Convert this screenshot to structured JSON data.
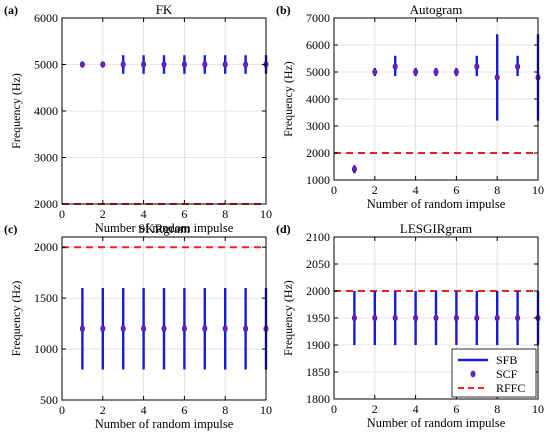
{
  "figure": {
    "colors": {
      "sfb": "#1a1adb",
      "scf": "#7a1fa2",
      "rffc": "#e8231f",
      "grid": "#dcdcdc",
      "axis": "#000000"
    }
  },
  "chart_data": [
    {
      "panel_label": "(a)",
      "type": "errorbar",
      "title": "FK",
      "xlabel": "Number of random impulse",
      "ylabel": "Frequency (Hz)",
      "xlim": [
        0,
        10
      ],
      "ylim": [
        2000,
        6000
      ],
      "xticks": [
        0,
        2,
        4,
        6,
        8,
        10
      ],
      "yticks": [
        2000,
        3000,
        4000,
        5000,
        6000
      ],
      "grid": true,
      "x": [
        1,
        2,
        3,
        4,
        5,
        6,
        7,
        8,
        9,
        10
      ],
      "scf": [
        5000,
        5000,
        5000,
        5000,
        5000,
        5000,
        5000,
        5000,
        5000,
        5000
      ],
      "sfb_low": [
        4950,
        4960,
        4800,
        4800,
        4800,
        4800,
        4800,
        4800,
        4800,
        4800
      ],
      "sfb_high": [
        5050,
        5040,
        5200,
        5200,
        5200,
        5200,
        5200,
        5200,
        5200,
        5200
      ],
      "rffc": 2000
    },
    {
      "panel_label": "(b)",
      "type": "errorbar",
      "title": "Autogram",
      "xlabel": "Number of random impulse",
      "ylabel": "Frequency (Hz)",
      "xlim": [
        0,
        10
      ],
      "ylim": [
        1000,
        7000
      ],
      "xticks": [
        0,
        2,
        4,
        6,
        8,
        10
      ],
      "yticks": [
        1000,
        2000,
        3000,
        4000,
        5000,
        6000,
        7000
      ],
      "grid": true,
      "x": [
        1,
        2,
        3,
        4,
        5,
        6,
        7,
        8,
        9,
        10
      ],
      "scf": [
        1400,
        5000,
        5200,
        5000,
        5000,
        5000,
        5200,
        4800,
        5200,
        4800
      ],
      "sfb_low": [
        1250,
        4850,
        4850,
        4850,
        4850,
        4850,
        4850,
        3200,
        4850,
        3200
      ],
      "sfb_high": [
        1550,
        5150,
        5600,
        5150,
        5150,
        5150,
        5600,
        6400,
        5600,
        6400
      ],
      "rffc": 2000
    },
    {
      "panel_label": "(c)",
      "type": "errorbar",
      "title": "SKRgram",
      "xlabel": "Number of random impulse",
      "ylabel": "Frequency (Hz)",
      "xlim": [
        0,
        10
      ],
      "ylim": [
        500,
        2100
      ],
      "xticks": [
        0,
        2,
        4,
        6,
        8,
        10
      ],
      "yticks": [
        500,
        1000,
        1500,
        2000
      ],
      "grid": true,
      "x": [
        1,
        2,
        3,
        4,
        5,
        6,
        7,
        8,
        9,
        10
      ],
      "scf": [
        1200,
        1200,
        1200,
        1200,
        1200,
        1200,
        1200,
        1200,
        1200,
        1200
      ],
      "sfb_low": [
        800,
        800,
        800,
        800,
        800,
        800,
        800,
        800,
        800,
        800
      ],
      "sfb_high": [
        1600,
        1600,
        1600,
        1600,
        1600,
        1600,
        1600,
        1600,
        1600,
        1600
      ],
      "rffc": 2000
    },
    {
      "panel_label": "(d)",
      "type": "errorbar",
      "title": "LESGIRgram",
      "xlabel": "Number of random impulse",
      "ylabel": "Frequency (Hz)",
      "xlim": [
        0,
        10
      ],
      "ylim": [
        1800,
        2100
      ],
      "xticks": [
        0,
        2,
        4,
        6,
        8,
        10
      ],
      "yticks": [
        1800,
        1850,
        1900,
        1950,
        2000,
        2050,
        2100
      ],
      "grid": true,
      "x": [
        1,
        2,
        3,
        4,
        5,
        6,
        7,
        8,
        9,
        10
      ],
      "scf": [
        1950,
        1950,
        1950,
        1950,
        1950,
        1950,
        1950,
        1950,
        1950,
        1950
      ],
      "sfb_low": [
        1900,
        1900,
        1900,
        1900,
        1900,
        1900,
        1900,
        1900,
        1900,
        1900
      ],
      "sfb_high": [
        2000,
        2000,
        2000,
        2000,
        2000,
        2000,
        2000,
        2000,
        2000,
        2000
      ],
      "rffc": 2000,
      "legend": {
        "placement": "bottom-right",
        "entries": [
          "SFB",
          "SCF",
          "RFFC"
        ]
      }
    }
  ]
}
